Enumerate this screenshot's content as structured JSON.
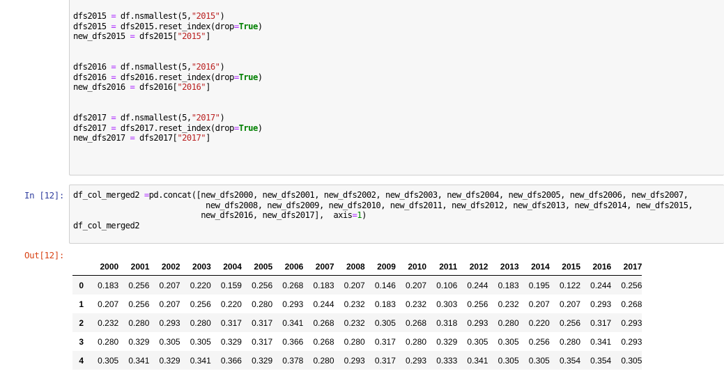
{
  "top_cell": {
    "lines": [
      [
        {
          "t": "dfs2015 "
        },
        {
          "t": "=",
          "c": "o"
        },
        {
          "t": " df.nsmallest(5,"
        },
        {
          "t": "\"2015\"",
          "c": "s"
        },
        {
          "t": ")"
        }
      ],
      [
        {
          "t": "dfs2015 "
        },
        {
          "t": "=",
          "c": "o"
        },
        {
          "t": " dfs2015.reset_index(drop"
        },
        {
          "t": "=",
          "c": "o"
        },
        {
          "t": "True",
          "c": "k"
        },
        {
          "t": ")"
        }
      ],
      [
        {
          "t": "new_dfs2015 "
        },
        {
          "t": "=",
          "c": "o"
        },
        {
          "t": " dfs2015["
        },
        {
          "t": "\"2015\"",
          "c": "s"
        },
        {
          "t": "]"
        }
      ],
      [],
      [],
      [
        {
          "t": "dfs2016 "
        },
        {
          "t": "=",
          "c": "o"
        },
        {
          "t": " df.nsmallest(5,"
        },
        {
          "t": "\"2016\"",
          "c": "s"
        },
        {
          "t": ")"
        }
      ],
      [
        {
          "t": "dfs2016 "
        },
        {
          "t": "=",
          "c": "o"
        },
        {
          "t": " dfs2016.reset_index(drop"
        },
        {
          "t": "=",
          "c": "o"
        },
        {
          "t": "True",
          "c": "k"
        },
        {
          "t": ")"
        }
      ],
      [
        {
          "t": "new_dfs2016 "
        },
        {
          "t": "=",
          "c": "o"
        },
        {
          "t": " dfs2016["
        },
        {
          "t": "\"2016\"",
          "c": "s"
        },
        {
          "t": "]"
        }
      ],
      [],
      [],
      [
        {
          "t": "dfs2017 "
        },
        {
          "t": "=",
          "c": "o"
        },
        {
          "t": " df.nsmallest(5,"
        },
        {
          "t": "\"2017\"",
          "c": "s"
        },
        {
          "t": ")"
        }
      ],
      [
        {
          "t": "dfs2017 "
        },
        {
          "t": "=",
          "c": "o"
        },
        {
          "t": " dfs2017.reset_index(drop"
        },
        {
          "t": "=",
          "c": "o"
        },
        {
          "t": "True",
          "c": "k"
        },
        {
          "t": ")"
        }
      ],
      [
        {
          "t": "new_dfs2017 "
        },
        {
          "t": "=",
          "c": "o"
        },
        {
          "t": " dfs2017["
        },
        {
          "t": "\"2017\"",
          "c": "s"
        },
        {
          "t": "]"
        }
      ]
    ]
  },
  "cell12": {
    "in_prompt": "In [12]:",
    "out_prompt": "Out[12]:",
    "lines": [
      [
        {
          "t": "df_col_merged2 "
        },
        {
          "t": "=",
          "c": "o"
        },
        {
          "t": "pd.concat([new_dfs2000, new_dfs2001, new_dfs2002, new_dfs2003, new_dfs2004, new_dfs2005, new_dfs2006, new_dfs2007,"
        }
      ],
      [
        {
          "t": "                            new_dfs2008, new_dfs2009, new_dfs2010, new_dfs2011, new_dfs2012, new_dfs2013, new_dfs2014, new_dfs2015,"
        }
      ],
      [
        {
          "t": "                           new_dfs2016, new_dfs2017],  axis"
        },
        {
          "t": "=",
          "c": "o"
        },
        {
          "t": "1",
          "c": "n"
        },
        {
          "t": ")"
        }
      ],
      [
        {
          "t": "df_col_merged2"
        }
      ]
    ]
  },
  "dataframe": {
    "columns": [
      "2000",
      "2001",
      "2002",
      "2003",
      "2004",
      "2005",
      "2006",
      "2007",
      "2008",
      "2009",
      "2010",
      "2011",
      "2012",
      "2013",
      "2014",
      "2015",
      "2016",
      "2017"
    ],
    "index": [
      "0",
      "1",
      "2",
      "3",
      "4"
    ],
    "rows": [
      [
        "0.183",
        "0.256",
        "0.207",
        "0.220",
        "0.159",
        "0.256",
        "0.268",
        "0.183",
        "0.207",
        "0.146",
        "0.207",
        "0.106",
        "0.244",
        "0.183",
        "0.195",
        "0.122",
        "0.244",
        "0.256"
      ],
      [
        "0.207",
        "0.256",
        "0.207",
        "0.256",
        "0.220",
        "0.280",
        "0.293",
        "0.244",
        "0.232",
        "0.183",
        "0.232",
        "0.303",
        "0.256",
        "0.232",
        "0.207",
        "0.207",
        "0.293",
        "0.268"
      ],
      [
        "0.232",
        "0.280",
        "0.293",
        "0.280",
        "0.317",
        "0.317",
        "0.341",
        "0.268",
        "0.232",
        "0.305",
        "0.268",
        "0.318",
        "0.293",
        "0.280",
        "0.220",
        "0.256",
        "0.317",
        "0.293"
      ],
      [
        "0.280",
        "0.329",
        "0.305",
        "0.305",
        "0.329",
        "0.317",
        "0.366",
        "0.268",
        "0.280",
        "0.317",
        "0.280",
        "0.329",
        "0.305",
        "0.305",
        "0.256",
        "0.280",
        "0.341",
        "0.293"
      ],
      [
        "0.305",
        "0.341",
        "0.329",
        "0.341",
        "0.366",
        "0.329",
        "0.378",
        "0.280",
        "0.293",
        "0.317",
        "0.293",
        "0.333",
        "0.341",
        "0.305",
        "0.305",
        "0.354",
        "0.354",
        "0.305"
      ]
    ]
  }
}
